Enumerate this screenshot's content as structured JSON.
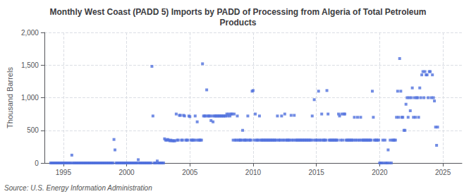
{
  "chart_data": {
    "type": "scatter",
    "title": "Monthly West Coast (PADD 5) Imports by PADD of Processing from Algeria of Total Petroleum\nProducts",
    "ylabel": "Thousand Barrels",
    "annotations": [
      "Source: U.S. Energy Information Administration"
    ],
    "marker": "square",
    "grid": true,
    "xlim": [
      1993.5,
      2026.5
    ],
    "ylim": [
      0,
      2000
    ],
    "xticks": [
      1995,
      2000,
      2005,
      2010,
      2015,
      2020,
      2025
    ],
    "yticks": [
      0,
      500,
      {
        "value": 1000,
        "label": "1,000"
      },
      {
        "value": 1500,
        "label": "1,500"
      },
      {
        "value": 2000,
        "label": "2,000"
      }
    ],
    "x": [
      1994.0,
      1994.08,
      1994.17,
      1994.25,
      1994.33,
      1994.42,
      1994.5,
      1994.58,
      1994.67,
      1994.75,
      1994.83,
      1994.92,
      1995.0,
      1995.08,
      1995.17,
      1995.25,
      1995.33,
      1995.42,
      1995.5,
      1995.58,
      1995.67,
      1995.75,
      1995.83,
      1995.92,
      1996.0,
      1996.08,
      1996.17,
      1996.25,
      1996.33,
      1996.42,
      1996.5,
      1996.58,
      1996.67,
      1996.75,
      1996.83,
      1996.92,
      1997.0,
      1997.08,
      1997.17,
      1997.25,
      1997.33,
      1997.42,
      1997.5,
      1997.58,
      1997.67,
      1997.75,
      1997.83,
      1997.92,
      1998.0,
      1998.08,
      1998.17,
      1998.25,
      1998.33,
      1998.42,
      1998.5,
      1998.58,
      1998.67,
      1998.75,
      1998.83,
      1998.92,
      1999.0,
      1999.08,
      1999.17,
      1999.25,
      1999.33,
      1999.42,
      1999.5,
      1999.58,
      1999.67,
      1999.75,
      1999.83,
      1999.92,
      2000.0,
      2000.08,
      2000.17,
      2000.25,
      2000.33,
      2000.42,
      2000.5,
      2000.58,
      2000.67,
      2000.75,
      2000.83,
      2000.92,
      2001.0,
      2001.08,
      2001.17,
      2001.25,
      2001.33,
      2001.42,
      2001.5,
      2001.58,
      2001.67,
      2001.75,
      2001.83,
      2001.92,
      2002.0,
      2002.08,
      2002.17,
      2002.25,
      2002.33,
      2002.42,
      2002.5,
      2002.58,
      2002.67,
      2002.75,
      2002.83,
      2002.92,
      2003.0,
      2003.08,
      2003.17,
      2003.25,
      2003.33,
      2003.42,
      2003.5,
      2003.58,
      2003.67,
      2003.75,
      2003.83,
      2003.92,
      2004.0,
      2004.08,
      2004.17,
      2004.25,
      2004.33,
      2004.42,
      2004.5,
      2004.58,
      2004.67,
      2004.75,
      2004.83,
      2004.92,
      2005.0,
      2005.08,
      2005.17,
      2005.25,
      2005.33,
      2005.42,
      2005.5,
      2005.58,
      2005.67,
      2005.75,
      2005.83,
      2005.92,
      2006.0,
      2006.08,
      2006.17,
      2006.25,
      2006.33,
      2006.42,
      2006.5,
      2006.58,
      2006.67,
      2006.75,
      2006.83,
      2006.92,
      2007.0,
      2007.08,
      2007.17,
      2007.25,
      2007.33,
      2007.42,
      2007.5,
      2007.58,
      2007.67,
      2007.75,
      2007.83,
      2007.92,
      2008.0,
      2008.08,
      2008.17,
      2008.25,
      2008.33,
      2008.42,
      2008.5,
      2008.58,
      2008.67,
      2008.75,
      2008.83,
      2008.92,
      2009.0,
      2009.08,
      2009.17,
      2009.25,
      2009.33,
      2009.42,
      2009.5,
      2009.58,
      2009.67,
      2009.75,
      2009.83,
      2009.92,
      2010.0,
      2010.08,
      2010.17,
      2010.25,
      2010.33,
      2010.42,
      2010.5,
      2010.58,
      2010.67,
      2010.75,
      2010.83,
      2010.92,
      2011.0,
      2011.08,
      2011.17,
      2011.25,
      2011.33,
      2011.42,
      2011.5,
      2011.58,
      2011.67,
      2011.75,
      2011.83,
      2011.92,
      2012.0,
      2012.08,
      2012.17,
      2012.25,
      2012.33,
      2012.42,
      2012.5,
      2012.58,
      2012.67,
      2012.75,
      2012.83,
      2012.92,
      2013.0,
      2013.08,
      2013.17,
      2013.25,
      2013.33,
      2013.42,
      2013.5,
      2013.58,
      2013.67,
      2013.75,
      2013.83,
      2013.92,
      2014.0,
      2014.08,
      2014.17,
      2014.25,
      2014.33,
      2014.42,
      2014.5,
      2014.58,
      2014.67,
      2014.75,
      2014.83,
      2014.92,
      2015.0,
      2015.08,
      2015.17,
      2015.25,
      2015.33,
      2015.42,
      2015.5,
      2015.58,
      2015.67,
      2015.75,
      2015.83,
      2015.92,
      2016.0,
      2016.08,
      2016.17,
      2016.25,
      2016.33,
      2016.42,
      2016.5,
      2016.58,
      2016.67,
      2016.75,
      2016.83,
      2016.92,
      2017.0,
      2017.08,
      2017.17,
      2017.25,
      2017.33,
      2017.42,
      2017.5,
      2017.58,
      2017.67,
      2017.75,
      2017.83,
      2017.92,
      2018.0,
      2018.08,
      2018.17,
      2018.25,
      2018.33,
      2018.42,
      2018.5,
      2018.58,
      2018.67,
      2018.75,
      2018.83,
      2018.92,
      2019.0,
      2019.08,
      2019.17,
      2019.25,
      2019.33,
      2019.42,
      2019.5,
      2019.58,
      2019.67,
      2019.75,
      2019.83,
      2019.92,
      2020.0,
      2020.08,
      2020.17,
      2020.25,
      2020.33,
      2020.42,
      2020.5,
      2020.58,
      2020.67,
      2020.75,
      2020.83,
      2020.92,
      2021.0,
      2021.08,
      2021.17,
      2021.25,
      2021.33,
      2021.42,
      2021.5,
      2021.58,
      2021.67,
      2021.75,
      2021.83,
      2021.92,
      2022.0,
      2022.08,
      2022.17,
      2022.25,
      2022.33,
      2022.42,
      2022.5,
      2022.58,
      2022.67,
      2022.75,
      2022.83,
      2022.92,
      2023.0,
      2023.08,
      2023.17,
      2023.25,
      2023.33,
      2023.42,
      2023.5,
      2023.58,
      2023.67,
      2023.75,
      2023.83,
      2023.92,
      2024.0,
      2024.08,
      2024.17,
      2024.25,
      2024.33,
      2024.42,
      2024.5,
      2024.58
    ],
    "values": [
      0,
      0,
      0,
      0,
      0,
      0,
      0,
      0,
      0,
      0,
      0,
      0,
      0,
      0,
      0,
      0,
      0,
      0,
      0,
      0,
      120,
      0,
      0,
      0,
      0,
      0,
      0,
      0,
      0,
      0,
      0,
      0,
      0,
      0,
      0,
      0,
      0,
      0,
      0,
      0,
      0,
      0,
      0,
      0,
      0,
      0,
      0,
      0,
      0,
      0,
      0,
      0,
      0,
      0,
      0,
      0,
      0,
      0,
      0,
      0,
      360,
      200,
      0,
      0,
      0,
      0,
      0,
      0,
      0,
      0,
      0,
      0,
      0,
      0,
      0,
      0,
      0,
      0,
      0,
      0,
      0,
      0,
      0,
      50,
      0,
      0,
      0,
      0,
      0,
      0,
      0,
      0,
      0,
      0,
      0,
      0,
      1480,
      720,
      0,
      0,
      0,
      30,
      0,
      0,
      0,
      0,
      0,
      0,
      370,
      350,
      350,
      360,
      350,
      340,
      350,
      340,
      340,
      340,
      340,
      750,
      350,
      350,
      730,
      730,
      350,
      350,
      730,
      720,
      350,
      350,
      350,
      720,
      710,
      350,
      350,
      350,
      350,
      720,
      350,
      630,
      350,
      350,
      350,
      350,
      1520,
      720,
      720,
      720,
      1120,
      720,
      720,
      720,
      650,
      720,
      630,
      720,
      720,
      720,
      720,
      720,
      720,
      720,
      720,
      720,
      720,
      720,
      720,
      750,
      720,
      750,
      720,
      750,
      750,
      350,
      750,
      350,
      350,
      720,
      350,
      350,
      350,
      350,
      500,
      350,
      350,
      350,
      350,
      720,
      350,
      350,
      350,
      1100,
      1110,
      350,
      750,
      350,
      350,
      350,
      720,
      350,
      350,
      350,
      350,
      350,
      350,
      350,
      350,
      350,
      350,
      350,
      350,
      350,
      350,
      350,
      350,
      720,
      350,
      350,
      350,
      720,
      350,
      350,
      750,
      350,
      350,
      350,
      350,
      350,
      730,
      350,
      350,
      730,
      350,
      350,
      350,
      350,
      350,
      350,
      350,
      350,
      350,
      350,
      350,
      350,
      350,
      350,
      350,
      350,
      720,
      350,
      970,
      350,
      350,
      350,
      1100,
      350,
      350,
      750,
      350,
      350,
      350,
      350,
      1110,
      750,
      350,
      350,
      350,
      350,
      350,
      350,
      350,
      350,
      350,
      750,
      720,
      350,
      750,
      350,
      750,
      750,
      350,
      350,
      350,
      350,
      350,
      350,
      350,
      350,
      700,
      350,
      350,
      700,
      350,
      350,
      700,
      350,
      350,
      350,
      350,
      350,
      350,
      350,
      350,
      350,
      350,
      1100,
      700,
      350,
      350,
      350,
      350,
      350,
      0,
      0,
      0,
      350,
      0,
      350,
      0,
      0,
      200,
      0,
      350,
      0,
      350,
      350,
      350,
      350,
      700,
      1100,
      700,
      1600,
      1100,
      700,
      700,
      500,
      500,
      900,
      1000,
      700,
      1000,
      800,
      1000,
      1150,
      700,
      1000,
      700,
      1000,
      1000,
      700,
      1150,
      1000,
      1350,
      1400,
      1000,
      1400,
      1350,
      1350,
      1000,
      1400,
      1400,
      1000,
      1350,
      1000,
      950,
      550,
      270,
      550
    ]
  }
}
